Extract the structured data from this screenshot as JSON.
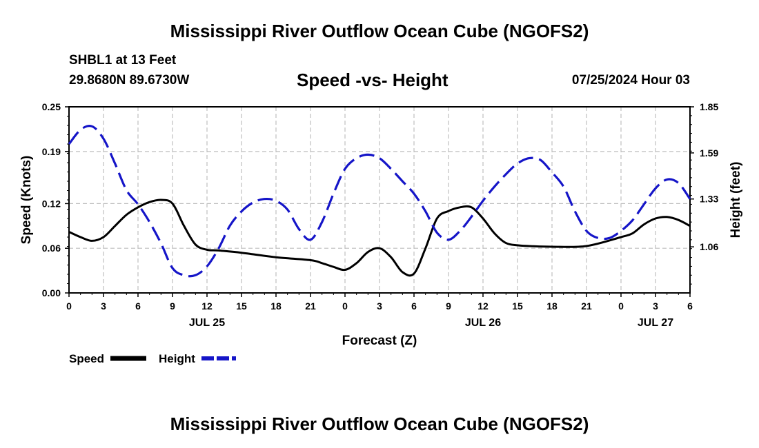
{
  "header": {
    "title": "Mississippi River Outflow Ocean Cube (NGOFS2)",
    "station": "SHBL1 at 13 Feet",
    "coords": "29.8680N  89.6730W",
    "subtitle": "Speed -vs- Height",
    "datetime": "07/25/2024 Hour 03"
  },
  "footer": {
    "title": "Mississippi River Outflow Ocean Cube (NGOFS2)"
  },
  "chart_data": {
    "type": "line",
    "title": "Speed -vs- Height",
    "xlabel": "Forecast (Z)",
    "ylabel": "Speed (Knots)",
    "y2label": "Height (feet)",
    "xlim": [
      0,
      54
    ],
    "ylim": [
      0,
      0.25
    ],
    "y2lim": [
      0.8,
      1.85
    ],
    "grid": true,
    "x_ticks": [
      0,
      3,
      6,
      9,
      12,
      15,
      18,
      21,
      24,
      27,
      30,
      33,
      36,
      39,
      42,
      45,
      48,
      51,
      54
    ],
    "x_tick_labels": [
      "0",
      "3",
      "6",
      "9",
      "12",
      "15",
      "18",
      "21",
      "0",
      "3",
      "6",
      "9",
      "12",
      "15",
      "18",
      "21",
      "0",
      "3",
      "6"
    ],
    "y_ticks": [
      0.0,
      0.06,
      0.12,
      0.19,
      0.25
    ],
    "y_tick_labels": [
      "0.00",
      "0.06",
      "0.12",
      "0.19",
      "0.25"
    ],
    "y2_ticks": [
      1.06,
      1.33,
      1.59,
      1.85
    ],
    "y2_tick_labels": [
      "1.06",
      "1.33",
      "1.59",
      "1.85"
    ],
    "date_labels": [
      {
        "x": 12,
        "text": "JUL 25"
      },
      {
        "x": 36,
        "text": "JUL 26"
      },
      {
        "x": 51,
        "text": "JUL 27"
      }
    ],
    "legend": {
      "position": "bottom-left",
      "speed_label": "Speed",
      "height_label": "Height"
    },
    "series": [
      {
        "name": "Speed",
        "axis": "left",
        "color": "#000000",
        "style": "solid",
        "x": [
          0,
          1,
          2,
          3,
          4,
          5,
          6,
          7,
          8,
          9,
          10,
          11,
          12,
          13,
          15,
          18,
          21,
          22,
          23,
          24,
          25,
          26,
          27,
          28,
          29,
          30,
          31,
          32,
          33,
          34,
          35,
          36,
          37,
          38,
          39,
          40,
          42,
          45,
          48,
          49,
          50,
          51,
          52,
          53,
          54
        ],
        "values": [
          0.082,
          0.075,
          0.07,
          0.075,
          0.09,
          0.105,
          0.115,
          0.122,
          0.125,
          0.12,
          0.09,
          0.065,
          0.058,
          0.057,
          0.054,
          0.048,
          0.044,
          0.04,
          0.035,
          0.031,
          0.04,
          0.055,
          0.06,
          0.048,
          0.028,
          0.026,
          0.06,
          0.1,
          0.11,
          0.115,
          0.115,
          0.1,
          0.08,
          0.067,
          0.064,
          0.063,
          0.062,
          0.063,
          0.075,
          0.08,
          0.092,
          0.1,
          0.102,
          0.098,
          0.09
        ]
      },
      {
        "name": "Height",
        "axis": "right",
        "color": "#1515c8",
        "style": "dashed",
        "x": [
          0,
          1,
          2,
          3,
          4,
          5,
          6,
          7,
          8,
          9,
          10,
          11,
          12,
          13,
          14,
          15,
          16,
          17,
          18,
          19,
          20,
          21,
          22,
          23,
          24,
          25,
          26,
          27,
          28,
          29,
          30,
          31,
          32,
          33,
          34,
          35,
          36,
          37,
          38,
          39,
          40,
          41,
          42,
          43,
          44,
          45,
          46,
          47,
          48,
          49,
          50,
          51,
          52,
          53,
          54
        ],
        "values": [
          1.64,
          1.72,
          1.74,
          1.67,
          1.53,
          1.38,
          1.3,
          1.2,
          1.08,
          0.94,
          0.9,
          0.9,
          0.95,
          1.05,
          1.18,
          1.26,
          1.31,
          1.33,
          1.32,
          1.27,
          1.16,
          1.1,
          1.2,
          1.36,
          1.5,
          1.56,
          1.58,
          1.56,
          1.5,
          1.43,
          1.36,
          1.26,
          1.14,
          1.1,
          1.15,
          1.23,
          1.32,
          1.4,
          1.47,
          1.53,
          1.56,
          1.55,
          1.48,
          1.4,
          1.26,
          1.15,
          1.11,
          1.11,
          1.15,
          1.21,
          1.3,
          1.39,
          1.44,
          1.42,
          1.33
        ]
      }
    ]
  }
}
